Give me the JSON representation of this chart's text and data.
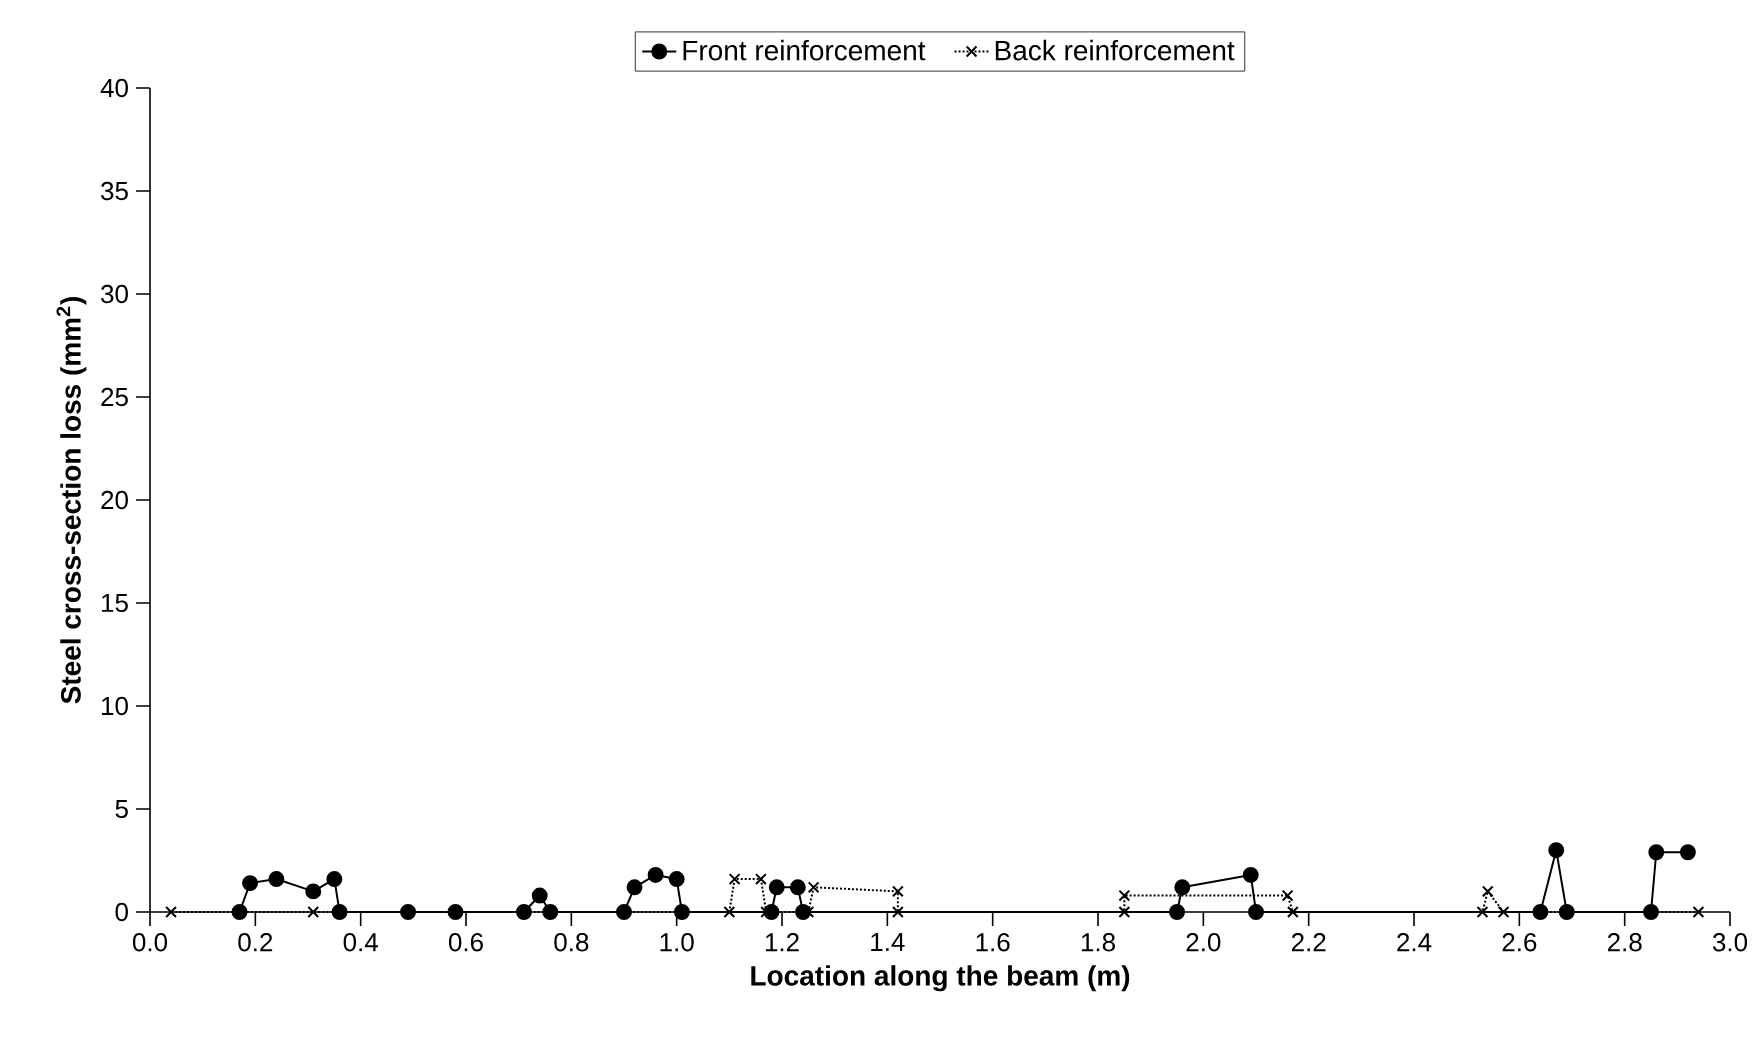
{
  "chart_data": {
    "type": "line",
    "xlabel": "Location along the beam (m)",
    "ylabel": "Steel cross-section loss (mm$^{2}$)",
    "xlim": [
      0,
      3.0
    ],
    "ylim": [
      0,
      40
    ],
    "xticks": [
      {
        "value": 0,
        "label": "0.0"
      },
      {
        "value": 0.2,
        "label": "0.2"
      },
      {
        "value": 0.4,
        "label": "0.4"
      },
      {
        "value": 0.6,
        "label": "0.6"
      },
      {
        "value": 0.8,
        "label": "0.8"
      },
      {
        "value": 1.0,
        "label": "1.0"
      },
      {
        "value": 1.2,
        "label": "1.2"
      },
      {
        "value": 1.4,
        "label": "1.4"
      },
      {
        "value": 1.6,
        "label": "1.6"
      },
      {
        "value": 1.8,
        "label": "1.8"
      },
      {
        "value": 2.0,
        "label": "2.0"
      },
      {
        "value": 2.2,
        "label": "2.2"
      },
      {
        "value": 2.4,
        "label": "2.4"
      },
      {
        "value": 2.6,
        "label": "2.6"
      },
      {
        "value": 2.8,
        "label": "2.8"
      },
      {
        "value": 3.0,
        "label": "3.0"
      }
    ],
    "yticks": [
      0,
      5,
      10,
      15,
      20,
      25,
      30,
      35,
      40
    ],
    "grid": false,
    "legend": "top",
    "series": [
      {
        "name": "Front reinforcement",
        "color": "#000000",
        "marker": "circle",
        "line_style": "solid",
        "x": [
          0.17,
          0.19,
          0.24,
          0.31,
          0.35,
          0.36,
          0.49,
          0.58,
          0.71,
          0.74,
          0.76,
          0.9,
          0.92,
          0.96,
          1.0,
          1.01,
          1.18,
          1.19,
          1.23,
          1.24,
          1.95,
          1.96,
          2.09,
          2.1,
          2.64,
          2.67,
          2.69,
          2.85,
          2.86,
          2.92
        ],
        "values": [
          0,
          1.4,
          1.6,
          1.0,
          1.6,
          0,
          0,
          0,
          0,
          0.8,
          0,
          0,
          1.2,
          1.8,
          1.6,
          0,
          0,
          1.2,
          1.2,
          0,
          0,
          1.2,
          1.8,
          0,
          0,
          3.0,
          0,
          0,
          2.9,
          2.9
        ]
      },
      {
        "name": "Back reinforcement",
        "color": "#000000",
        "marker": "cross",
        "line_style": "dotted",
        "x": [
          0.04,
          0.31,
          1.1,
          1.11,
          1.16,
          1.17,
          1.25,
          1.26,
          1.42,
          1.42,
          1.85,
          1.85,
          2.16,
          2.17,
          2.53,
          2.54,
          2.57,
          2.94
        ],
        "values": [
          0,
          0,
          0,
          1.6,
          1.6,
          0,
          0,
          1.2,
          1.0,
          0,
          0,
          0.8,
          0.8,
          0,
          0,
          1.0,
          0,
          0
        ]
      }
    ]
  }
}
